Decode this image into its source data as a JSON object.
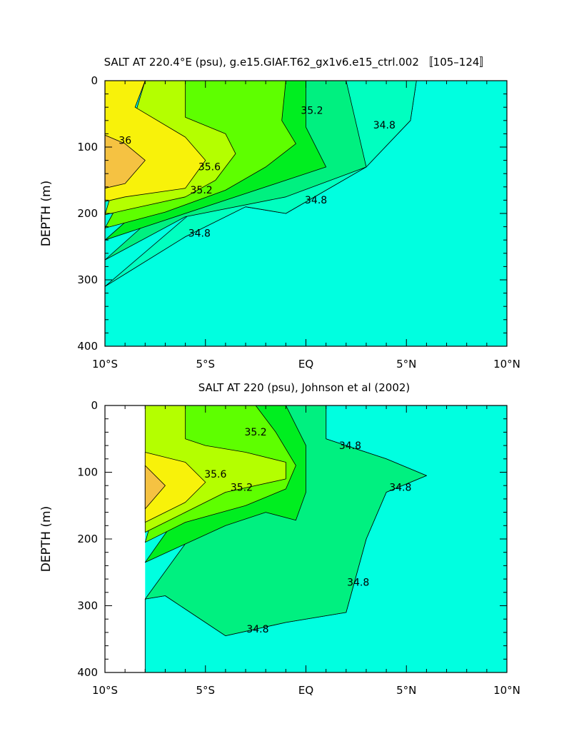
{
  "chart_data": [
    {
      "type": "contour",
      "title": "SALT AT 220.4°E (psu), g.e15.GIAF.T62_gx1v6.e15_ctrl.002 〚105–124〛",
      "xlabel": "",
      "ylabel": "DEPTH (m)",
      "xlim": [
        -10,
        10
      ],
      "ylim": [
        400,
        0
      ],
      "x_ticks": [
        "10°S",
        "5°S",
        "EQ",
        "5°N",
        "10°N"
      ],
      "y_ticks": [
        "0",
        "100",
        "200",
        "300",
        "400"
      ],
      "contour_interval": 0.2,
      "contour_labels": [
        {
          "text": "36",
          "lat": -9.0,
          "depth": 95
        },
        {
          "text": "35.6",
          "lat": -4.8,
          "depth": 135
        },
        {
          "text": "35.2",
          "lat": -5.2,
          "depth": 170
        },
        {
          "text": "34.8",
          "lat": -5.3,
          "depth": 235
        },
        {
          "text": "35.2",
          "lat": 0.3,
          "depth": 50
        },
        {
          "text": "34.8",
          "lat": 0.5,
          "depth": 185
        },
        {
          "text": "34.8",
          "lat": 3.9,
          "depth": 72
        }
      ],
      "levels": [
        {
          "name": ">36.0",
          "color": "#f5c242",
          "points": [
            [
              -10,
              82
            ],
            [
              -9,
              95
            ],
            [
              -8,
              120
            ],
            [
              -9,
              155
            ],
            [
              -10,
              162
            ]
          ]
        },
        {
          "name": "35.8-36.0",
          "color": "#f8f20a",
          "points": [
            [
              -10,
              0
            ],
            [
              -8,
              0
            ],
            [
              -8.5,
              40
            ],
            [
              -6,
              85
            ],
            [
              -5,
              120
            ],
            [
              -6,
              162
            ],
            [
              -9,
              175
            ],
            [
              -10,
              182
            ]
          ]
        },
        {
          "name": "35.6-35.8",
          "color": "#b4ff00",
          "points": [
            [
              -8,
              0
            ],
            [
              -6,
              0
            ],
            [
              -6,
              55
            ],
            [
              -4,
              80
            ],
            [
              -3.5,
              110
            ],
            [
              -4.5,
              150
            ],
            [
              -6,
              175
            ],
            [
              -9,
              195
            ],
            [
              -10,
              202
            ]
          ]
        },
        {
          "name": "35.4-35.6",
          "color": "#5eff00",
          "points": [
            [
              -6,
              0
            ],
            [
              -1,
              0
            ],
            [
              -1.2,
              60
            ],
            [
              -0.5,
              95
            ],
            [
              -2,
              130
            ],
            [
              -4,
              165
            ],
            [
              -7,
              198
            ],
            [
              -10,
              222
            ]
          ]
        },
        {
          "name": "35.2-35.4",
          "color": "#00ee20",
          "points": [
            [
              -1,
              0
            ],
            [
              0,
              0
            ],
            [
              0,
              70
            ],
            [
              1,
              130
            ],
            [
              -1,
              150
            ],
            [
              -4,
              180
            ],
            [
              -8,
              220
            ],
            [
              -10,
              240
            ]
          ]
        },
        {
          "name": "35.0-35.2",
          "color": "#00f080",
          "points": [
            [
              0,
              0
            ],
            [
              2,
              0
            ],
            [
              3,
              130
            ],
            [
              -1,
              175
            ],
            [
              -6,
              205
            ],
            [
              -10,
              270
            ]
          ]
        },
        {
          "name": "34.8-35.0",
          "color": "#00ffc0",
          "points": [
            [
              2,
              0
            ],
            [
              5.5,
              0
            ],
            [
              5.2,
              60
            ],
            [
              3,
              130
            ],
            [
              -1,
              200
            ],
            [
              -3,
              190
            ],
            [
              -6,
              235
            ],
            [
              -10,
              310
            ]
          ]
        },
        {
          "name": "34.6-34.8",
          "color": "#00ffe0",
          "points": [
            [
              -10,
              310
            ],
            [
              -6,
              235
            ],
            [
              -3,
              190
            ],
            [
              -1,
              200
            ],
            [
              3,
              130
            ],
            [
              5.2,
              60
            ],
            [
              5.5,
              0
            ],
            [
              10,
              0
            ],
            [
              10,
              400
            ],
            [
              -10,
              400
            ]
          ]
        },
        {
          "name": "<34.6",
          "color": "#00ffff",
          "points": [
            [
              7,
              0
            ],
            [
              10,
              0
            ],
            [
              10,
              400
            ],
            [
              5,
              400
            ],
            [
              5.5,
              330
            ],
            [
              5,
              230
            ],
            [
              4.5,
              150
            ],
            [
              7,
              110
            ],
            [
              9.5,
              75
            ],
            [
              7,
              40
            ]
          ]
        }
      ]
    },
    {
      "type": "contour",
      "title": "SALT AT 220 (psu), Johnson et al (2002)",
      "xlabel": "",
      "ylabel": "DEPTH (m)",
      "xlim": [
        -10,
        10
      ],
      "ylim": [
        400,
        0
      ],
      "x_ticks": [
        "10°S",
        "5°S",
        "EQ",
        "5°N",
        "10°N"
      ],
      "y_ticks": [
        "0",
        "100",
        "200",
        "300",
        "400"
      ],
      "data_start_lat": -8.0,
      "contour_interval": 0.2,
      "contour_labels": [
        {
          "text": "35.2",
          "lat": -2.5,
          "depth": 45
        },
        {
          "text": "35.6",
          "lat": -4.5,
          "depth": 108
        },
        {
          "text": "35.2",
          "lat": -3.2,
          "depth": 128
        },
        {
          "text": "34.8",
          "lat": 2.2,
          "depth": 65
        },
        {
          "text": "34.8",
          "lat": 4.7,
          "depth": 128
        },
        {
          "text": "34.8",
          "lat": 2.6,
          "depth": 270
        },
        {
          "text": "34.8",
          "lat": -2.4,
          "depth": 340
        }
      ],
      "levels": [
        {
          "name": ">36.0",
          "color": "#f5c242",
          "points": [
            [
              -8,
              90
            ],
            [
              -7,
              120
            ],
            [
              -8,
              155
            ]
          ]
        },
        {
          "name": "35.8-36.0",
          "color": "#f8f20a",
          "points": [
            [
              -8,
              70
            ],
            [
              -6,
              85
            ],
            [
              -5,
              115
            ],
            [
              -6,
              145
            ],
            [
              -8,
              175
            ]
          ]
        },
        {
          "name": "35.6-35.8",
          "color": "#b4ff00",
          "points": [
            [
              -8,
              0
            ],
            [
              -6,
              0
            ],
            [
              -6,
              50
            ],
            [
              -5,
              60
            ],
            [
              -3,
              70
            ],
            [
              -1,
              85
            ],
            [
              -1,
              110
            ],
            [
              -4,
              130
            ],
            [
              -6,
              160
            ],
            [
              -8,
              190
            ]
          ]
        },
        {
          "name": "35.4-35.6",
          "color": "#5eff00",
          "points": [
            [
              -6,
              0
            ],
            [
              -2.5,
              0
            ],
            [
              -1.5,
              40
            ],
            [
              -0.5,
              90
            ],
            [
              -1,
              125
            ],
            [
              -3,
              150
            ],
            [
              -6,
              175
            ],
            [
              -8,
              205
            ]
          ]
        },
        {
          "name": "35.2-35.4",
          "color": "#00ee20",
          "points": [
            [
              -2.5,
              0
            ],
            [
              -1,
              0
            ],
            [
              0,
              60
            ],
            [
              0,
              130
            ],
            [
              -0.5,
              172
            ],
            [
              -2,
              160
            ],
            [
              -4,
              180
            ],
            [
              -8,
              235
            ]
          ]
        },
        {
          "name": "34.8-35.2",
          "color": "#00f080",
          "points": [
            [
              -1,
              0
            ],
            [
              1,
              0
            ],
            [
              1,
              50
            ],
            [
              4,
              80
            ],
            [
              6,
              105
            ],
            [
              4,
              130
            ],
            [
              3,
              200
            ],
            [
              2,
              310
            ],
            [
              -1,
              325
            ],
            [
              -4,
              345
            ],
            [
              -7,
              285
            ],
            [
              -8,
              290
            ]
          ]
        },
        {
          "name": "34.6-34.8",
          "color": "#00ffe0",
          "points": [
            [
              1,
              0
            ],
            [
              10,
              0
            ],
            [
              10,
              400
            ],
            [
              -8,
              400
            ],
            [
              -8,
              290
            ],
            [
              -7,
              285
            ],
            [
              -4,
              345
            ],
            [
              -1,
              325
            ],
            [
              2,
              310
            ],
            [
              3,
              200
            ],
            [
              4,
              130
            ],
            [
              6,
              105
            ],
            [
              4,
              80
            ],
            [
              1,
              50
            ]
          ]
        },
        {
          "name": "<34.6",
          "color": "#00ffff",
          "points": [
            [
              4,
              0
            ],
            [
              10,
              0
            ],
            [
              10,
              110
            ],
            [
              8,
              90
            ],
            [
              7.5,
              125
            ],
            [
              8.5,
              60
            ],
            [
              6,
              40
            ]
          ]
        },
        {
          "name": "<34.4",
          "color": "#00e8ff",
          "points": [
            [
              8.5,
              0
            ],
            [
              10,
              0
            ],
            [
              10,
              40
            ],
            [
              9,
              30
            ],
            [
              8.5,
              40
            ]
          ]
        }
      ]
    }
  ]
}
